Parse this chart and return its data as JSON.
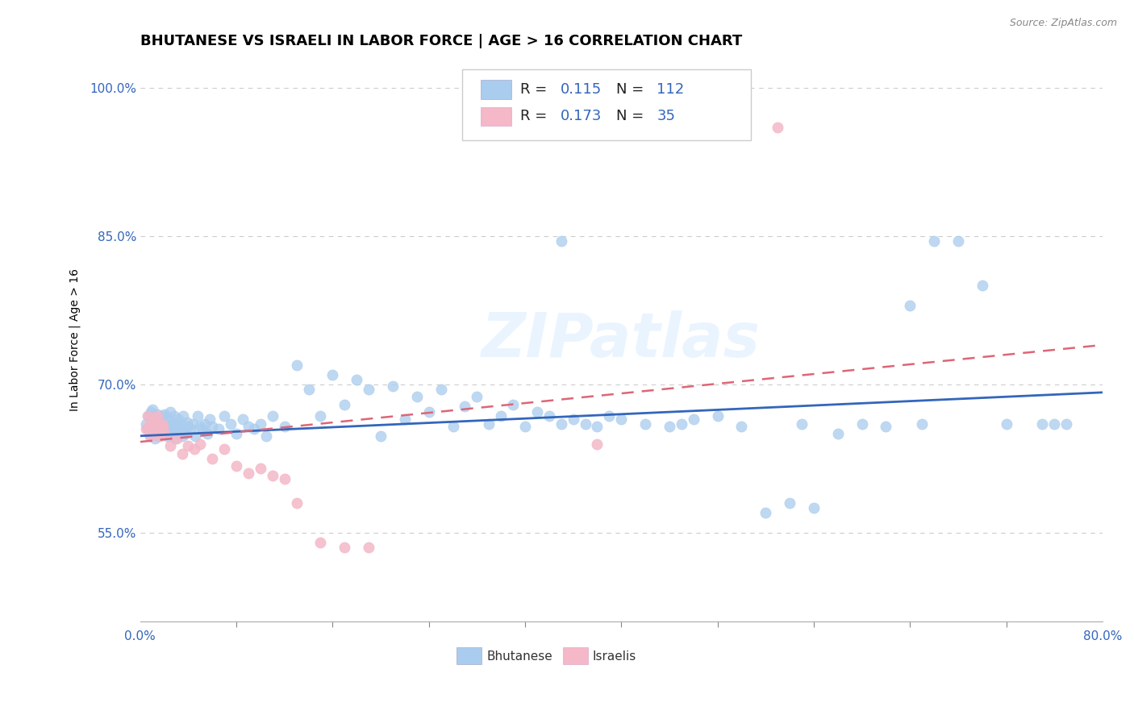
{
  "title": "BHUTANESE VS ISRAELI IN LABOR FORCE | AGE > 16 CORRELATION CHART",
  "source_text": "Source: ZipAtlas.com",
  "ylabel": "In Labor Force | Age > 16",
  "xlim": [
    0.0,
    0.8
  ],
  "ylim": [
    0.46,
    1.03
  ],
  "yticks": [
    0.55,
    0.7,
    0.85,
    1.0
  ],
  "ytick_labels": [
    "55.0%",
    "70.0%",
    "85.0%",
    "100.0%"
  ],
  "xtick_labels": [
    "0.0%",
    "80.0%"
  ],
  "R_blue": 0.115,
  "N_blue": 112,
  "R_pink": 0.173,
  "N_pink": 35,
  "blue_color": "#aaccee",
  "pink_color": "#f4b8c8",
  "blue_line_color": "#3366bb",
  "pink_line_color": "#dd6677",
  "watermark": "ZIPatlas",
  "title_fontsize": 13,
  "label_fontsize": 10,
  "tick_fontsize": 11,
  "blue_x": [
    0.005,
    0.006,
    0.007,
    0.008,
    0.009,
    0.01,
    0.01,
    0.011,
    0.012,
    0.013,
    0.014,
    0.015,
    0.015,
    0.016,
    0.017,
    0.018,
    0.019,
    0.02,
    0.02,
    0.021,
    0.022,
    0.023,
    0.024,
    0.025,
    0.025,
    0.026,
    0.027,
    0.028,
    0.029,
    0.03,
    0.031,
    0.032,
    0.033,
    0.034,
    0.035,
    0.036,
    0.037,
    0.038,
    0.039,
    0.04,
    0.042,
    0.044,
    0.046,
    0.048,
    0.05,
    0.052,
    0.054,
    0.056,
    0.058,
    0.06,
    0.065,
    0.07,
    0.075,
    0.08,
    0.085,
    0.09,
    0.095,
    0.1,
    0.105,
    0.11,
    0.12,
    0.13,
    0.14,
    0.15,
    0.16,
    0.17,
    0.18,
    0.19,
    0.2,
    0.21,
    0.22,
    0.23,
    0.24,
    0.25,
    0.26,
    0.27,
    0.28,
    0.29,
    0.3,
    0.31,
    0.32,
    0.33,
    0.34,
    0.35,
    0.36,
    0.37,
    0.38,
    0.39,
    0.4,
    0.42,
    0.44,
    0.46,
    0.48,
    0.5,
    0.52,
    0.54,
    0.56,
    0.58,
    0.6,
    0.62,
    0.64,
    0.66,
    0.68,
    0.7,
    0.72,
    0.35,
    0.45,
    0.55,
    0.65,
    0.75,
    0.76,
    0.77
  ],
  "blue_y": [
    0.66,
    0.655,
    0.668,
    0.648,
    0.672,
    0.65,
    0.675,
    0.66,
    0.645,
    0.665,
    0.67,
    0.655,
    0.648,
    0.662,
    0.658,
    0.65,
    0.668,
    0.655,
    0.67,
    0.66,
    0.648,
    0.665,
    0.658,
    0.672,
    0.65,
    0.66,
    0.655,
    0.668,
    0.645,
    0.66,
    0.658,
    0.665,
    0.65,
    0.66,
    0.648,
    0.668,
    0.655,
    0.65,
    0.662,
    0.658,
    0.655,
    0.66,
    0.648,
    0.668,
    0.658,
    0.655,
    0.66,
    0.65,
    0.665,
    0.658,
    0.655,
    0.668,
    0.66,
    0.65,
    0.665,
    0.658,
    0.655,
    0.66,
    0.648,
    0.668,
    0.658,
    0.72,
    0.695,
    0.668,
    0.71,
    0.68,
    0.705,
    0.695,
    0.648,
    0.698,
    0.665,
    0.688,
    0.672,
    0.695,
    0.658,
    0.678,
    0.688,
    0.66,
    0.668,
    0.68,
    0.658,
    0.672,
    0.668,
    0.66,
    0.665,
    0.66,
    0.658,
    0.668,
    0.665,
    0.66,
    0.658,
    0.665,
    0.668,
    0.658,
    0.57,
    0.58,
    0.575,
    0.65,
    0.66,
    0.658,
    0.78,
    0.845,
    0.845,
    0.8,
    0.66,
    0.845,
    0.66,
    0.66,
    0.66,
    0.66,
    0.66,
    0.66
  ],
  "pink_x": [
    0.005,
    0.006,
    0.007,
    0.008,
    0.009,
    0.01,
    0.011,
    0.012,
    0.013,
    0.014,
    0.015,
    0.016,
    0.017,
    0.018,
    0.019,
    0.02,
    0.025,
    0.03,
    0.035,
    0.04,
    0.045,
    0.05,
    0.06,
    0.07,
    0.08,
    0.09,
    0.1,
    0.11,
    0.12,
    0.13,
    0.15,
    0.17,
    0.19,
    0.38,
    0.53
  ],
  "pink_y": [
    0.655,
    0.668,
    0.655,
    0.66,
    0.648,
    0.658,
    0.665,
    0.65,
    0.655,
    0.668,
    0.66,
    0.648,
    0.655,
    0.66,
    0.658,
    0.65,
    0.638,
    0.645,
    0.63,
    0.638,
    0.635,
    0.64,
    0.625,
    0.635,
    0.618,
    0.61,
    0.615,
    0.608,
    0.605,
    0.58,
    0.54,
    0.535,
    0.535,
    0.64,
    0.96
  ],
  "blue_line_x0": 0.0,
  "blue_line_x1": 0.8,
  "blue_line_y0": 0.648,
  "blue_line_y1": 0.692,
  "pink_line_x0": 0.0,
  "pink_line_x1": 0.8,
  "pink_line_y0": 0.642,
  "pink_line_y1": 0.74
}
